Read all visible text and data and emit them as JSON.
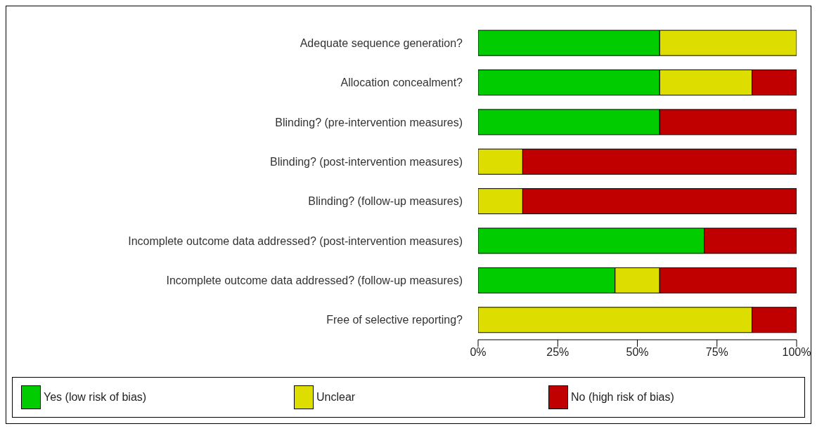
{
  "chart_data": {
    "type": "bar",
    "orientation": "horizontal",
    "stacked": true,
    "categories": [
      "Adequate sequence generation?",
      "Allocation concealment?",
      "Blinding? (pre-intervention measures)",
      "Blinding? (post-intervention measures)",
      "Blinding? (follow-up measures)",
      "Incomplete outcome data addressed? (post-intervention measures)",
      "Incomplete outcome data addressed? (follow-up measures)",
      "Free of selective reporting?"
    ],
    "series": [
      {
        "name": "Yes (low risk of bias)",
        "color": "#00cc00",
        "values": [
          57,
          57,
          57,
          0,
          0,
          71,
          43,
          0
        ]
      },
      {
        "name": "Unclear",
        "color": "#dddd00",
        "values": [
          43,
          29,
          0,
          14,
          14,
          0,
          14,
          86
        ]
      },
      {
        "name": "No (high risk of bias)",
        "color": "#c00000",
        "values": [
          0,
          14,
          43,
          86,
          86,
          29,
          43,
          14
        ]
      }
    ],
    "xlim": [
      0,
      100
    ],
    "xticks": [
      {
        "value": 0,
        "label": "0%"
      },
      {
        "value": 25,
        "label": "25%"
      },
      {
        "value": 50,
        "label": "50%"
      },
      {
        "value": 75,
        "label": "75%"
      },
      {
        "value": 100,
        "label": "100%"
      }
    ],
    "legend": "bottom"
  }
}
